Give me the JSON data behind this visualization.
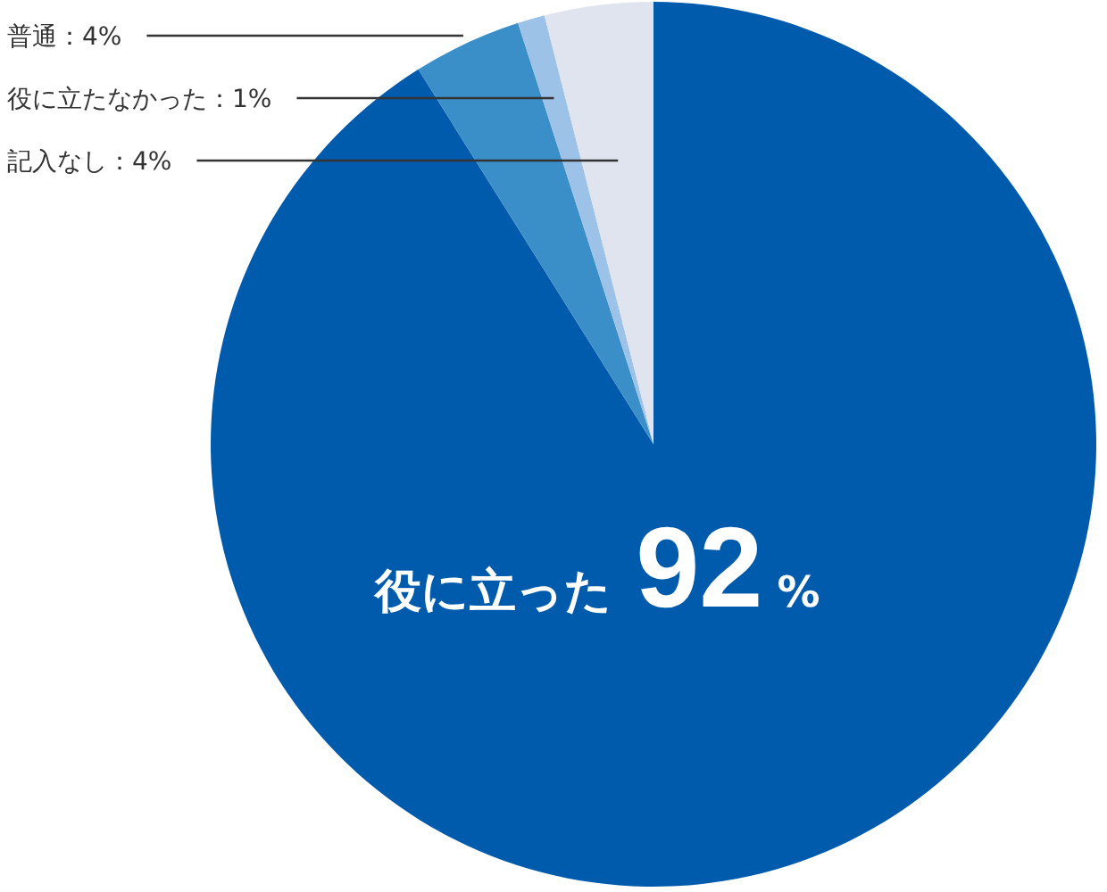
{
  "chart_data": {
    "type": "pie",
    "categories": [
      "役に立った",
      "普通",
      "役に立たなかった",
      "記入なし"
    ],
    "values": [
      92,
      4,
      1,
      4
    ],
    "colors": [
      "#005bac",
      "#3a8fc8",
      "#9cc2e8",
      "#dfe4ee"
    ],
    "value_labels": [
      "92%",
      "4%",
      "1%",
      "4%"
    ]
  }
}
